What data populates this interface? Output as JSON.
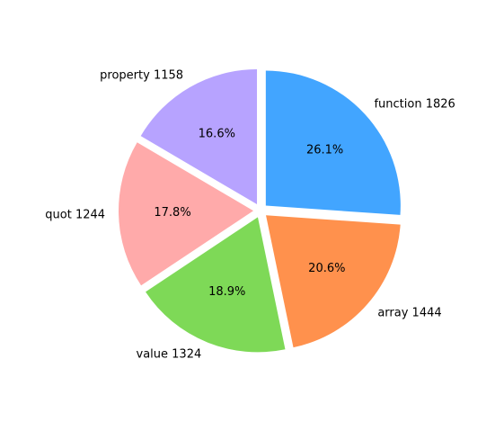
{
  "chart_data": {
    "type": "pie",
    "title": "",
    "slices": [
      {
        "label": "function",
        "value": 1826,
        "display": "function 1826",
        "percent_label": "26.1%",
        "color": "#42a5ff"
      },
      {
        "label": "array",
        "value": 1444,
        "display": "array 1444",
        "percent_label": "20.6%",
        "color": "#ff914d"
      },
      {
        "label": "value",
        "value": 1324,
        "display": "value 1324",
        "percent_label": "18.9%",
        "color": "#7ed957"
      },
      {
        "label": "quot",
        "value": 1244,
        "display": "quot 1244",
        "percent_label": "17.8%",
        "color": "#ffaaaa"
      },
      {
        "label": "property",
        "value": 1158,
        "display": "property 1158",
        "percent_label": "16.6%",
        "color": "#b7a3ff"
      }
    ],
    "start_angle_deg": 90,
    "direction": "clockwise",
    "exploded": true,
    "legend": "none"
  }
}
